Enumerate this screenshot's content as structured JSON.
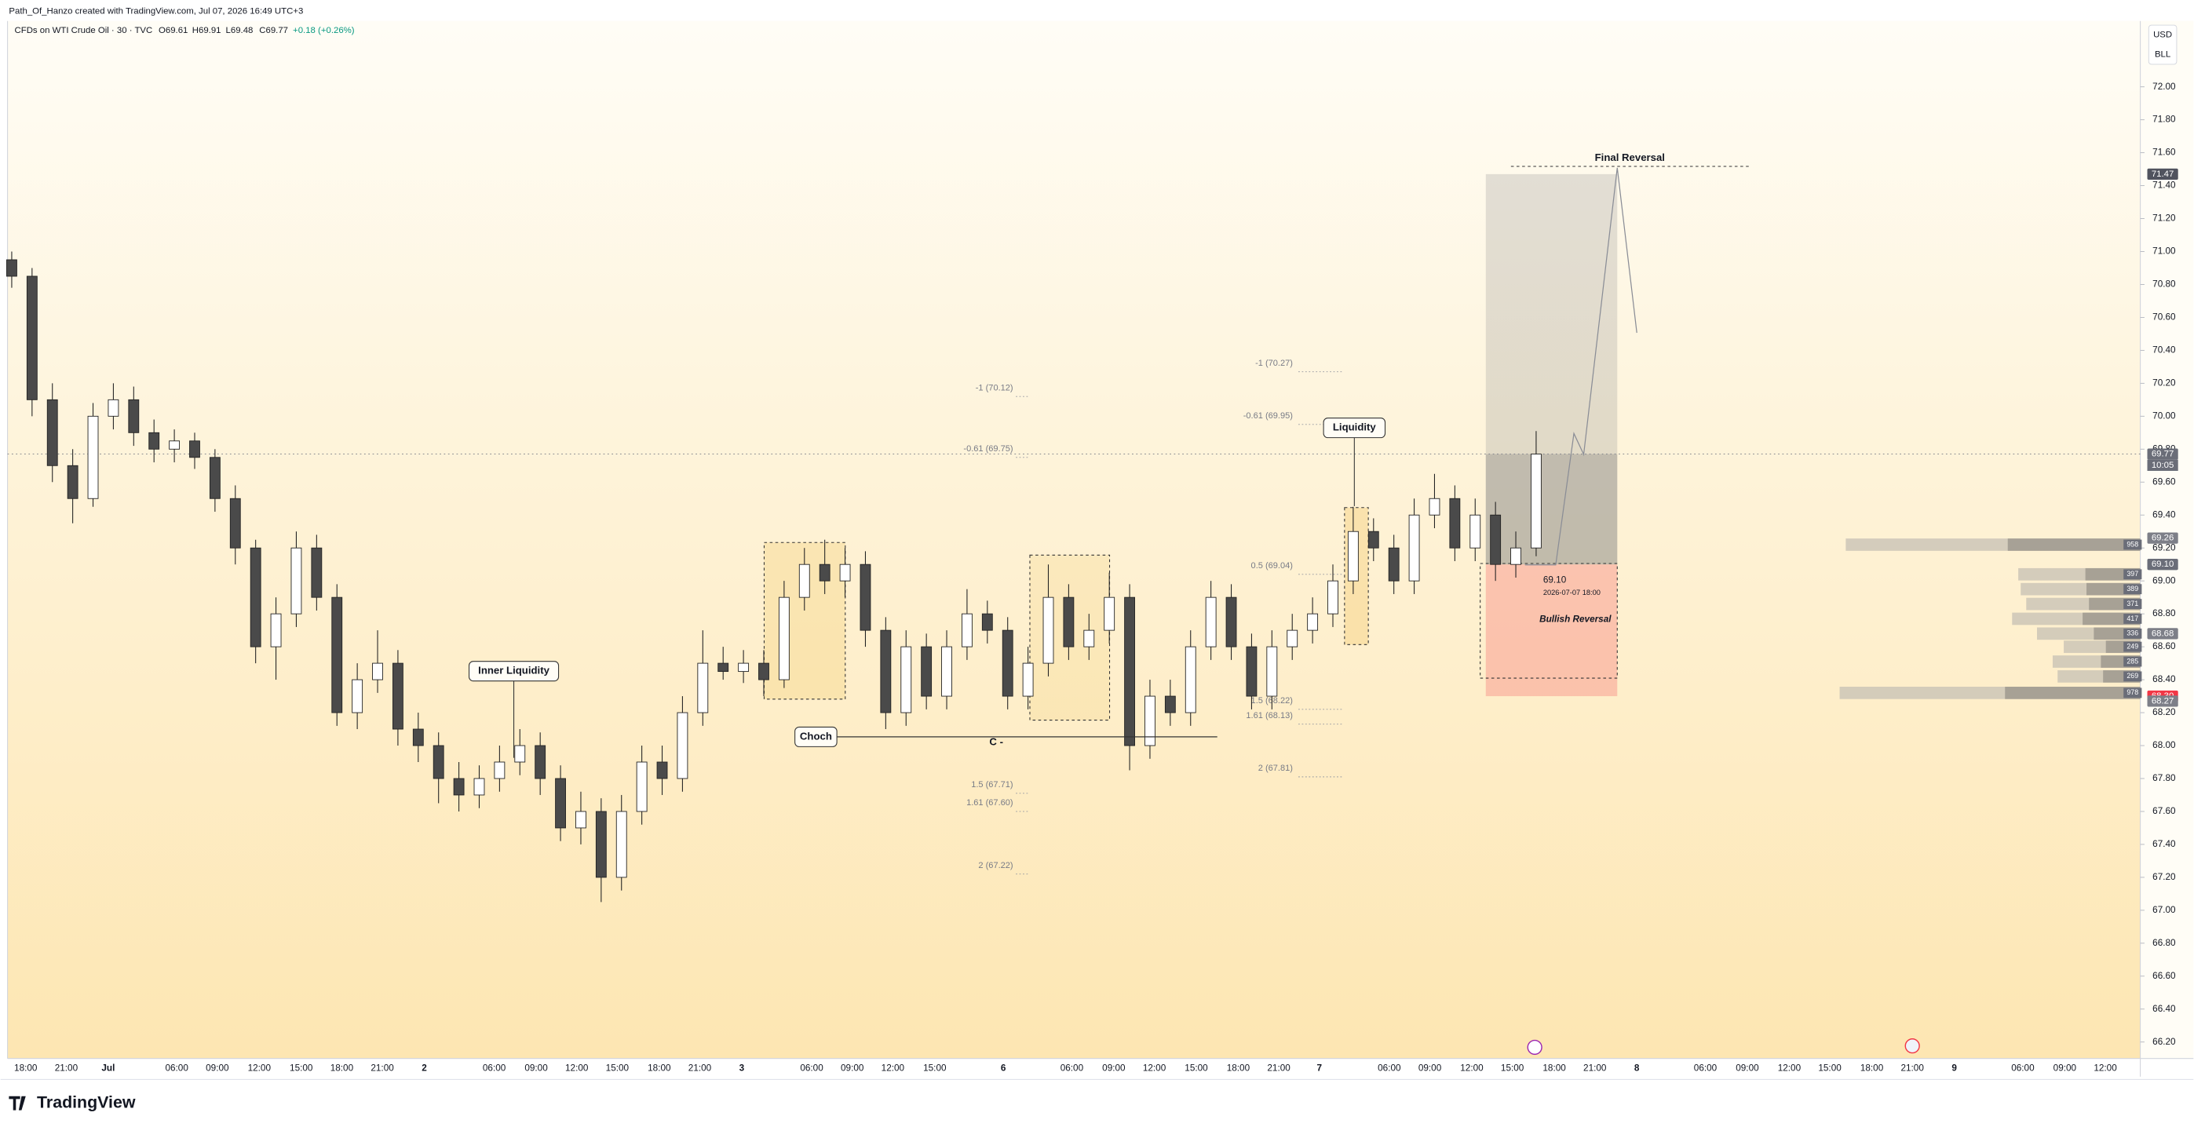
{
  "header": {
    "credit": "Path_Of_Hanzo created with TradingView.com, Jul 07, 2026 16:49 UTC+3",
    "symbol": "CFDs on WTI Crude Oil · 30 · TVC",
    "ohlc": [
      "O69.61",
      "H69.91",
      "L69.48",
      "C69.77"
    ],
    "change": "+0.18 (+0.26%)",
    "currency": "USD",
    "unit": "BLL"
  },
  "brand": "TradingView",
  "chart_data": {
    "type": "candlestick",
    "open": [
      70.95,
      70.85,
      70.1,
      69.7,
      69.5,
      70.0,
      70.1,
      69.9,
      69.8,
      69.85,
      69.75,
      69.5,
      69.2,
      68.6,
      68.8,
      69.2,
      68.9,
      68.2,
      68.4,
      68.5,
      68.1,
      68.0,
      67.8,
      67.7,
      67.8,
      67.9,
      68.0,
      67.8,
      67.5,
      67.6,
      67.2,
      67.6,
      67.9,
      67.8,
      68.2,
      68.5,
      68.45,
      68.5,
      68.4,
      68.9,
      69.1,
      69.0,
      69.1,
      68.7,
      68.2,
      68.6,
      68.3,
      68.6,
      68.8,
      68.7,
      68.3,
      68.5,
      68.9,
      68.6,
      68.7,
      68.9,
      68.0,
      68.3,
      68.2,
      68.6,
      68.9,
      68.6,
      68.3,
      68.6,
      68.7,
      68.8,
      69.0,
      69.3,
      69.2,
      69.0,
      69.4,
      69.5,
      69.2,
      69.4,
      69.1,
      69.2
    ],
    "high": [
      71.0,
      70.9,
      70.2,
      69.8,
      70.08,
      70.2,
      70.18,
      69.98,
      69.92,
      69.9,
      69.8,
      69.58,
      69.25,
      68.9,
      69.3,
      69.28,
      68.98,
      68.5,
      68.7,
      68.58,
      68.2,
      68.08,
      67.9,
      67.88,
      68.0,
      68.1,
      68.08,
      67.88,
      67.72,
      67.68,
      67.7,
      68.0,
      68.0,
      68.3,
      68.7,
      68.6,
      68.58,
      68.58,
      69.0,
      69.2,
      69.25,
      69.2,
      69.18,
      68.78,
      68.7,
      68.68,
      68.7,
      68.95,
      68.88,
      68.78,
      68.6,
      69.1,
      68.98,
      68.8,
      69.05,
      68.98,
      68.4,
      68.4,
      68.7,
      69.0,
      68.98,
      68.68,
      68.7,
      68.8,
      68.9,
      69.1,
      69.45,
      69.38,
      69.28,
      69.5,
      69.65,
      69.58,
      69.5,
      69.48,
      69.3,
      69.91
    ],
    "low": [
      70.78,
      70.0,
      69.6,
      69.35,
      69.45,
      69.92,
      69.82,
      69.72,
      69.72,
      69.68,
      69.42,
      69.1,
      68.5,
      68.4,
      68.72,
      68.82,
      68.12,
      68.1,
      68.32,
      68.0,
      67.9,
      67.65,
      67.6,
      67.62,
      67.72,
      67.82,
      67.7,
      67.42,
      67.4,
      67.05,
      67.12,
      67.52,
      67.7,
      67.72,
      68.12,
      68.4,
      68.38,
      68.3,
      68.35,
      68.82,
      68.92,
      68.9,
      68.6,
      68.1,
      68.12,
      68.22,
      68.22,
      68.52,
      68.62,
      68.22,
      68.22,
      68.42,
      68.52,
      68.52,
      68.62,
      67.85,
      67.92,
      68.12,
      68.12,
      68.52,
      68.52,
      68.22,
      68.22,
      68.52,
      68.62,
      68.72,
      68.92,
      69.12,
      68.92,
      68.92,
      69.32,
      69.12,
      69.12,
      69.0,
      69.02,
      69.15
    ],
    "close": [
      70.85,
      70.1,
      69.7,
      69.5,
      70.0,
      70.1,
      69.9,
      69.8,
      69.85,
      69.75,
      69.5,
      69.2,
      68.6,
      68.8,
      69.2,
      68.9,
      68.2,
      68.4,
      68.5,
      68.1,
      68.0,
      67.8,
      67.7,
      67.8,
      67.9,
      68.0,
      67.8,
      67.5,
      67.6,
      67.2,
      67.6,
      67.9,
      67.8,
      68.2,
      68.5,
      68.45,
      68.5,
      68.4,
      68.9,
      69.1,
      69.0,
      69.1,
      68.7,
      68.2,
      68.6,
      68.3,
      68.6,
      68.8,
      68.7,
      68.3,
      68.5,
      68.9,
      68.6,
      68.7,
      68.9,
      68.0,
      68.3,
      68.2,
      68.6,
      68.9,
      68.6,
      68.3,
      68.6,
      68.7,
      68.8,
      69.0,
      69.3,
      69.2,
      69.0,
      69.4,
      69.5,
      69.2,
      69.4,
      69.1,
      69.2,
      69.77
    ],
    "up_color": "#ffffff",
    "down_color": "#4a4a4a",
    "ylim": [
      66.1,
      72.4
    ],
    "yticks": [
      {
        "value": 66.2,
        "label": "66.20"
      },
      {
        "value": 66.4,
        "label": "66.40"
      },
      {
        "value": 66.6,
        "label": "66.60"
      },
      {
        "value": 66.8,
        "label": "66.80"
      },
      {
        "value": 67.0,
        "label": "67.00"
      },
      {
        "value": 67.2,
        "label": "67.20"
      },
      {
        "value": 67.4,
        "label": "67.40"
      },
      {
        "value": 67.6,
        "label": "67.60"
      },
      {
        "value": 67.8,
        "label": "67.80"
      },
      {
        "value": 68.0,
        "label": "68.00"
      },
      {
        "value": 68.2,
        "label": "68.20"
      },
      {
        "value": 68.4,
        "label": "68.40"
      },
      {
        "value": 68.6,
        "label": "68.60"
      },
      {
        "value": 68.8,
        "label": "68.80"
      },
      {
        "value": 69.0,
        "label": "69.00"
      },
      {
        "value": 69.2,
        "label": "69.20"
      },
      {
        "value": 69.4,
        "label": "69.40"
      },
      {
        "value": 69.6,
        "label": "69.60"
      },
      {
        "value": 69.8,
        "label": "69.80"
      },
      {
        "value": 70.0,
        "label": "70.00"
      },
      {
        "value": 70.2,
        "label": "70.20"
      },
      {
        "value": 70.4,
        "label": "70.40"
      },
      {
        "value": 70.6,
        "label": "70.60"
      },
      {
        "value": 70.8,
        "label": "70.80"
      },
      {
        "value": 71.0,
        "label": "71.00"
      },
      {
        "value": 71.2,
        "label": "71.20"
      },
      {
        "value": 71.4,
        "label": "71.40"
      },
      {
        "value": 71.6,
        "label": "71.60"
      },
      {
        "value": 71.8,
        "label": "71.80"
      },
      {
        "value": 72.0,
        "label": "72.00"
      }
    ],
    "x_labels": [
      "18:00",
      "21:00",
      "Jul",
      "06:00",
      "09:00",
      "12:00",
      "15:00",
      "18:00",
      "21:00",
      "2",
      "06:00",
      "09:00",
      "12:00",
      "15:00",
      "18:00",
      "21:00",
      "3",
      "06:00",
      "09:00",
      "12:00",
      "15:00",
      "6",
      "06:00",
      "09:00",
      "12:00",
      "15:00",
      "18:00",
      "21:00",
      "7",
      "06:00",
      "09:00",
      "12:00",
      "15:00",
      "18:00",
      "21:00",
      "8",
      "06:00",
      "09:00",
      "12:00",
      "15:00",
      "18:00",
      "21:00",
      "9",
      "06:00",
      "09:00",
      "12:00"
    ],
    "price_labels": [
      71.47,
      69.77,
      69.26,
      {
        "value": 69.1,
        "label": "69.10"
      },
      68.68,
      {
        "value": 68.3,
        "label": "68.30"
      },
      68.27
    ],
    "price_label_colors": [
      "#50535e",
      "#6a6d78",
      "#7d7f88",
      "#6a6d78",
      "#7d7f88",
      "#f23645",
      "#7d7f88"
    ],
    "countdown": "10:05",
    "fib_levels": [
      {
        "value": 70.12,
        "label": "-1 (70.12)"
      },
      {
        "value": 69.75,
        "label": "-0.61 (69.75)"
      },
      {
        "value": 67.71,
        "label": "1.5 (67.71)"
      },
      {
        "value": 67.6,
        "label": "1.61 (67.60)"
      },
      {
        "value": 67.22,
        "label": "2 (67.22)"
      },
      {
        "value": 70.27,
        "label": "-1 (70.27)"
      },
      {
        "value": 69.95,
        "label": "-0.61 (69.95)"
      },
      {
        "value": 69.04,
        "label": "0.5 (69.04)"
      },
      {
        "value": 68.22,
        "label": "1.5 (68.22)"
      },
      {
        "value": 68.13,
        "label": "1.61 (68.13)"
      },
      {
        "value": 67.81,
        "label": "2 (67.81)"
      }
    ],
    "volume_profile": {
      "levels": [
        69.22,
        69.04,
        68.95,
        68.86,
        68.77,
        68.68,
        68.6,
        68.51,
        68.42,
        68.32
      ],
      "volumes": [
        958,
        397,
        389,
        371,
        417,
        336,
        249,
        285,
        269,
        978
      ],
      "color": "#c9c3b5"
    },
    "annotations": [
      "Final Reversal",
      "Liquidity",
      "Inner Liquidity",
      "Choch",
      "C -",
      "Bullish Reversal",
      "69.10",
      "2026-07-07 18:00"
    ]
  }
}
